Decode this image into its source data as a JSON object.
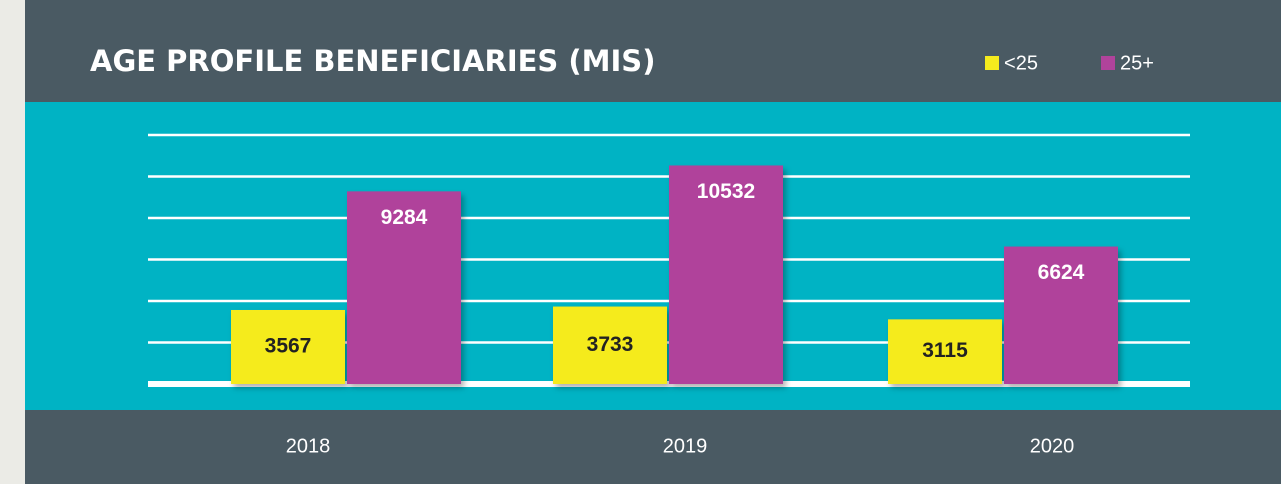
{
  "chart_data": {
    "type": "bar",
    "title": "AGE PROFILE BENEFICIARIES (MIS)",
    "categories": [
      "2018",
      "2019",
      "2020"
    ],
    "series": [
      {
        "name": "<25",
        "color": "#f5eb1e",
        "values": [
          3567,
          3733,
          3115
        ]
      },
      {
        "name": "25+",
        "color": "#b0439b",
        "values": [
          9284,
          10532,
          6624
        ]
      }
    ],
    "ylim": [
      0,
      12000
    ],
    "yticks": [
      0,
      2000,
      4000,
      6000,
      8000,
      10000,
      12000
    ],
    "grid": true,
    "legend": "top-right"
  }
}
